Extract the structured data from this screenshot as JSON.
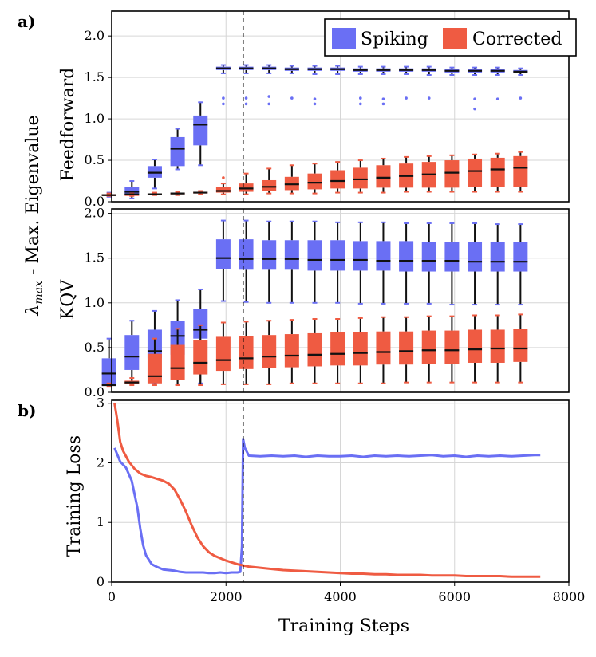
{
  "figure": {
    "panel_a_label": "a)",
    "panel_b_label": "b)",
    "shared_ylabel": "λmax - Max. Eigenvalue",
    "shared_ylabel_sub": "max",
    "shared_ylabel_rest": " - Max. Eigenvalue",
    "shared_xlabel": "Training Steps"
  },
  "colors": {
    "spiking": "#6a6ff4",
    "corrected": "#ef5b42",
    "median": "#111111",
    "grid": "#d6d6d6",
    "vline": "#000000"
  },
  "legend": {
    "spiking": "Spiking",
    "corrected": "Corrected"
  },
  "chart_data": [
    {
      "id": "feedforward",
      "type": "box",
      "title": "Feedforward",
      "ylim": [
        0,
        2.3
      ],
      "yticks": [
        0.0,
        0.5,
        1.0,
        1.5,
        2.0
      ],
      "ytick_labels": [
        "0.0",
        "0.5",
        "1.0",
        "1.5",
        "2.0"
      ],
      "switch_step": 2300,
      "series": [
        {
          "name": "Spiking",
          "x": [
            400,
            800,
            1200,
            1600,
            2000,
            2400,
            2800,
            3200,
            3600,
            4000,
            4400,
            4800,
            5200,
            5600,
            6000,
            6400,
            6800,
            7200,
            7600
          ],
          "q1": [
            0.08,
            0.09,
            0.29,
            0.43,
            0.68,
            1.59,
            1.59,
            1.59,
            1.58,
            1.58,
            1.58,
            1.57,
            1.57,
            1.57,
            1.57,
            1.56,
            1.56,
            1.56,
            1.56
          ],
          "median": [
            0.08,
            0.12,
            0.35,
            0.64,
            0.93,
            1.61,
            1.61,
            1.61,
            1.6,
            1.6,
            1.6,
            1.59,
            1.59,
            1.59,
            1.59,
            1.58,
            1.58,
            1.58,
            1.57
          ],
          "q3": [
            0.09,
            0.18,
            0.43,
            0.78,
            1.04,
            1.63,
            1.63,
            1.63,
            1.62,
            1.62,
            1.62,
            1.61,
            1.61,
            1.61,
            1.61,
            1.6,
            1.6,
            1.6,
            1.59
          ],
          "whisker_low": [
            0.06,
            0.04,
            0.16,
            0.39,
            0.44,
            1.55,
            1.55,
            1.55,
            1.55,
            1.54,
            1.54,
            1.54,
            1.54,
            1.54,
            1.53,
            1.53,
            1.53,
            1.53,
            1.53
          ],
          "whisker_high": [
            0.11,
            0.25,
            0.51,
            0.88,
            1.2,
            1.65,
            1.65,
            1.65,
            1.64,
            1.64,
            1.64,
            1.63,
            1.63,
            1.63,
            1.63,
            1.62,
            1.62,
            1.62,
            1.61
          ],
          "outliers": [
            [],
            [],
            [],
            [],
            [],
            [
              1.25,
              1.18
            ],
            [
              1.25,
              1.18
            ],
            [
              1.27,
              1.18
            ],
            [
              1.25
            ],
            [
              1.24,
              1.18
            ],
            [],
            [
              1.25,
              1.18
            ],
            [
              1.24,
              1.18
            ],
            [
              1.25
            ],
            [
              1.25
            ],
            [],
            [
              1.24,
              1.12
            ],
            [
              1.24
            ],
            [
              1.25
            ]
          ]
        },
        {
          "name": "Corrected",
          "x": [
            400,
            800,
            1200,
            1600,
            2000,
            2400,
            2800,
            3200,
            3600,
            4000,
            4400,
            4800,
            5200,
            5600,
            6000,
            6400,
            6800,
            7200,
            7600
          ],
          "q1": [
            0.08,
            0.08,
            0.09,
            0.09,
            0.1,
            0.11,
            0.12,
            0.13,
            0.14,
            0.15,
            0.16,
            0.16,
            0.17,
            0.17,
            0.17,
            0.17,
            0.18,
            0.18,
            0.18
          ],
          "median": [
            0.08,
            0.09,
            0.09,
            0.1,
            0.11,
            0.13,
            0.16,
            0.18,
            0.21,
            0.23,
            0.25,
            0.27,
            0.29,
            0.31,
            0.33,
            0.35,
            0.37,
            0.39,
            0.41
          ],
          "q3": [
            0.09,
            0.09,
            0.1,
            0.11,
            0.12,
            0.18,
            0.22,
            0.26,
            0.3,
            0.34,
            0.38,
            0.41,
            0.44,
            0.46,
            0.48,
            0.5,
            0.52,
            0.53,
            0.55
          ],
          "whisker_low": [
            0.07,
            0.07,
            0.08,
            0.08,
            0.09,
            0.09,
            0.09,
            0.1,
            0.1,
            0.1,
            0.11,
            0.11,
            0.11,
            0.12,
            0.12,
            0.12,
            0.12,
            0.12,
            0.12
          ],
          "whisker_high": [
            0.1,
            0.1,
            0.11,
            0.12,
            0.13,
            0.22,
            0.34,
            0.4,
            0.44,
            0.46,
            0.48,
            0.5,
            0.52,
            0.54,
            0.55,
            0.56,
            0.57,
            0.58,
            0.6
          ],
          "outliers": [
            [],
            [],
            [],
            [],
            [],
            [
              0.29
            ],
            [],
            [],
            [],
            [],
            [],
            [],
            [],
            [],
            [],
            [],
            [],
            [],
            []
          ]
        }
      ]
    },
    {
      "id": "kqv",
      "type": "box",
      "title": "KQV",
      "ylim": [
        0,
        2.05
      ],
      "yticks": [
        0.0,
        0.5,
        1.0,
        1.5,
        2.0
      ],
      "ytick_labels": [
        "0.0",
        "0.5",
        "1.0",
        "1.5",
        "2.0"
      ],
      "switch_step": 2300,
      "series": [
        {
          "name": "Spiking",
          "x": [
            400,
            800,
            1200,
            1600,
            2000,
            2400,
            2800,
            3200,
            3600,
            4000,
            4400,
            4800,
            5200,
            5600,
            6000,
            6400,
            6800,
            7200,
            7600
          ],
          "q1": [
            0.09,
            0.25,
            0.38,
            0.42,
            0.6,
            1.38,
            1.37,
            1.37,
            1.37,
            1.36,
            1.36,
            1.36,
            1.36,
            1.35,
            1.35,
            1.35,
            1.35,
            1.35,
            1.35
          ],
          "median": [
            0.21,
            0.4,
            0.46,
            0.63,
            0.7,
            1.5,
            1.49,
            1.49,
            1.49,
            1.48,
            1.48,
            1.48,
            1.47,
            1.47,
            1.47,
            1.47,
            1.46,
            1.46,
            1.46
          ],
          "q3": [
            0.38,
            0.64,
            0.7,
            0.8,
            0.93,
            1.71,
            1.71,
            1.7,
            1.7,
            1.7,
            1.7,
            1.69,
            1.69,
            1.69,
            1.68,
            1.68,
            1.68,
            1.68,
            1.68
          ],
          "whisker_low": [
            0.08,
            0.11,
            0.1,
            0.09,
            0.1,
            1.02,
            1.01,
            1.0,
            1.0,
            1.0,
            1.0,
            0.99,
            0.99,
            0.99,
            0.99,
            0.98,
            0.98,
            0.98,
            0.98
          ],
          "whisker_high": [
            0.6,
            0.8,
            0.91,
            1.03,
            1.15,
            1.92,
            1.92,
            1.91,
            1.91,
            1.91,
            1.9,
            1.9,
            1.9,
            1.89,
            1.89,
            1.89,
            1.89,
            1.88,
            1.88
          ],
          "outliers": [
            [],
            [],
            [],
            [],
            [],
            [],
            [],
            [],
            [],
            [],
            [],
            [],
            [],
            [],
            [],
            [],
            [],
            [],
            []
          ]
        },
        {
          "name": "Corrected",
          "x": [
            400,
            800,
            1200,
            1600,
            2000,
            2400,
            2800,
            3200,
            3600,
            4000,
            4400,
            4800,
            5200,
            5600,
            6000,
            6400,
            6800,
            7200,
            7600
          ],
          "q1": [
            0.08,
            0.09,
            0.1,
            0.14,
            0.2,
            0.24,
            0.26,
            0.27,
            0.28,
            0.29,
            0.3,
            0.3,
            0.31,
            0.31,
            0.32,
            0.32,
            0.33,
            0.33,
            0.34
          ],
          "median": [
            0.08,
            0.11,
            0.18,
            0.27,
            0.33,
            0.36,
            0.38,
            0.4,
            0.41,
            0.42,
            0.43,
            0.44,
            0.45,
            0.46,
            0.47,
            0.47,
            0.48,
            0.49,
            0.49
          ],
          "q3": [
            0.09,
            0.13,
            0.43,
            0.53,
            0.58,
            0.62,
            0.63,
            0.64,
            0.65,
            0.66,
            0.67,
            0.67,
            0.68,
            0.68,
            0.69,
            0.69,
            0.7,
            0.7,
            0.71
          ],
          "whisker_low": [
            0.07,
            0.08,
            0.08,
            0.08,
            0.08,
            0.09,
            0.09,
            0.09,
            0.1,
            0.1,
            0.1,
            0.1,
            0.1,
            0.11,
            0.11,
            0.11,
            0.11,
            0.11,
            0.11
          ],
          "whisker_high": [
            0.1,
            0.16,
            0.6,
            0.71,
            0.75,
            0.78,
            0.79,
            0.8,
            0.81,
            0.82,
            0.82,
            0.83,
            0.84,
            0.84,
            0.85,
            0.85,
            0.86,
            0.86,
            0.87
          ],
          "outliers": [
            [],
            [],
            [],
            [],
            [],
            [],
            [],
            [],
            [],
            [],
            [],
            [],
            [],
            [],
            [],
            [],
            [],
            [],
            []
          ]
        }
      ]
    },
    {
      "id": "training-loss",
      "type": "line",
      "ylabel": "Training Loss",
      "xlabel": "Training Steps",
      "xlim": [
        0,
        8000
      ],
      "ylim": [
        0,
        3.05
      ],
      "xticks": [
        0,
        2000,
        4000,
        6000,
        8000
      ],
      "xtick_labels": [
        "0",
        "2000",
        "4000",
        "6000",
        "8000"
      ],
      "yticks": [
        0,
        1,
        2,
        3
      ],
      "ytick_labels": [
        "0",
        "1",
        "2",
        "3"
      ],
      "switch_step": 2300,
      "series": [
        {
          "name": "Spiking",
          "x": [
            50,
            150,
            250,
            350,
            450,
            500,
            550,
            600,
            700,
            800,
            900,
            1000,
            1100,
            1200,
            1300,
            1400,
            1500,
            1600,
            1700,
            1800,
            1900,
            2000,
            2100,
            2200,
            2250,
            2280,
            2300,
            2330,
            2400,
            2600,
            2800,
            3000,
            3200,
            3400,
            3600,
            3800,
            4000,
            4200,
            4400,
            4600,
            4800,
            5000,
            5200,
            5400,
            5600,
            5800,
            6000,
            6200,
            6400,
            6600,
            6800,
            7000,
            7200,
            7400,
            7500
          ],
          "y": [
            2.25,
            2.02,
            1.92,
            1.7,
            1.25,
            0.9,
            0.62,
            0.45,
            0.3,
            0.25,
            0.21,
            0.2,
            0.19,
            0.17,
            0.16,
            0.16,
            0.16,
            0.16,
            0.15,
            0.15,
            0.16,
            0.15,
            0.16,
            0.16,
            0.17,
            0.6,
            2.4,
            2.25,
            2.12,
            2.11,
            2.12,
            2.11,
            2.12,
            2.1,
            2.12,
            2.11,
            2.11,
            2.12,
            2.1,
            2.12,
            2.11,
            2.12,
            2.11,
            2.12,
            2.13,
            2.11,
            2.12,
            2.1,
            2.12,
            2.11,
            2.12,
            2.11,
            2.12,
            2.13,
            2.13
          ]
        },
        {
          "name": "Corrected",
          "x": [
            50,
            100,
            150,
            200,
            300,
            400,
            500,
            600,
            700,
            800,
            900,
            1000,
            1100,
            1200,
            1300,
            1400,
            1500,
            1600,
            1700,
            1800,
            1900,
            2000,
            2100,
            2200,
            2300,
            2400,
            2600,
            2800,
            3000,
            3200,
            3400,
            3600,
            3800,
            4000,
            4200,
            4400,
            4600,
            4800,
            5000,
            5200,
            5400,
            5600,
            5800,
            6000,
            6200,
            6400,
            6600,
            6800,
            7000,
            7200,
            7400,
            7500
          ],
          "y": [
            3.0,
            2.7,
            2.35,
            2.2,
            2.02,
            1.9,
            1.82,
            1.78,
            1.76,
            1.73,
            1.7,
            1.65,
            1.55,
            1.38,
            1.18,
            0.95,
            0.75,
            0.6,
            0.5,
            0.44,
            0.4,
            0.36,
            0.33,
            0.3,
            0.28,
            0.26,
            0.24,
            0.22,
            0.2,
            0.19,
            0.18,
            0.17,
            0.16,
            0.15,
            0.14,
            0.14,
            0.13,
            0.13,
            0.12,
            0.12,
            0.12,
            0.11,
            0.11,
            0.11,
            0.1,
            0.1,
            0.1,
            0.1,
            0.09,
            0.09,
            0.09,
            0.09
          ]
        }
      ]
    }
  ]
}
